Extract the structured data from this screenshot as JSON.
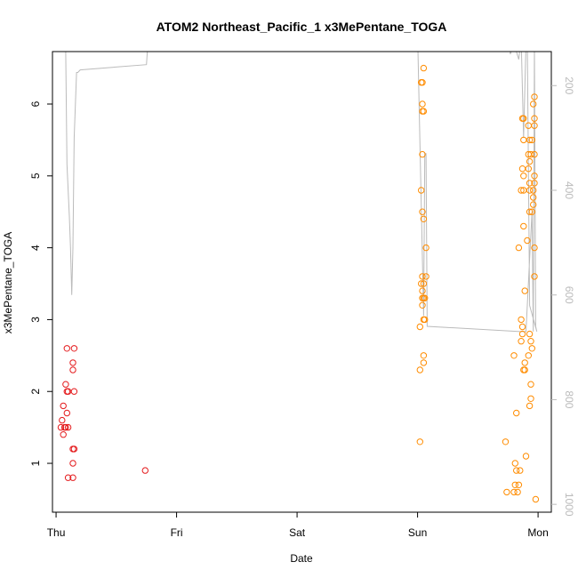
{
  "chart_data": {
    "type": "scatter",
    "title": "ATOM2 Northeast_Pacific_1 x3MePentane_TOGA",
    "xlabel": "Date",
    "ylabel": "x3MePentane_TOGA",
    "x_ticks": [
      "Thu",
      "Fri",
      "Sat",
      "Sun",
      "Mon"
    ],
    "x_tick_values": [
      0,
      1,
      2,
      3,
      4
    ],
    "xlim": [
      -0.03,
      4.11
    ],
    "ylim": [
      0.32,
      6.73
    ],
    "y_ticks": [
      1,
      2,
      3,
      4,
      5,
      6
    ],
    "y_right_ticks": [
      200,
      400,
      600,
      800,
      1000
    ],
    "y_right_lim": [
      1015,
      135
    ],
    "colors": {
      "series_a": "#e41a1c",
      "series_b": "#ff8c00",
      "pressure_line": "#bbbbbb"
    },
    "series": [
      {
        "color": "series_a",
        "points": [
          [
            0.08,
            1.5
          ],
          [
            0.05,
            1.6
          ],
          [
            0.06,
            1.8
          ],
          [
            0.06,
            1.4
          ],
          [
            0.04,
            1.5
          ],
          [
            0.07,
            1.5
          ],
          [
            0.09,
            2.0
          ],
          [
            0.1,
            2.0
          ],
          [
            0.09,
            1.7
          ],
          [
            0.1,
            1.5
          ],
          [
            0.08,
            2.1
          ],
          [
            0.09,
            2.6
          ],
          [
            0.15,
            2.6
          ],
          [
            0.14,
            2.4
          ],
          [
            0.14,
            2.3
          ],
          [
            0.15,
            2.0
          ],
          [
            0.14,
            1.2
          ],
          [
            0.15,
            1.2
          ],
          [
            0.14,
            1.0
          ],
          [
            0.1,
            0.8
          ],
          [
            0.14,
            0.8
          ],
          [
            0.74,
            0.9
          ]
        ]
      },
      {
        "color": "series_b",
        "points": [
          [
            3.03,
            6.3
          ],
          [
            3.05,
            6.5
          ],
          [
            3.04,
            6.3
          ],
          [
            3.04,
            6.0
          ],
          [
            3.04,
            5.9
          ],
          [
            3.05,
            5.9
          ],
          [
            3.04,
            5.3
          ],
          [
            3.03,
            4.8
          ],
          [
            3.04,
            4.5
          ],
          [
            3.05,
            4.4
          ],
          [
            3.07,
            4.0
          ],
          [
            3.04,
            3.6
          ],
          [
            3.07,
            3.6
          ],
          [
            3.05,
            3.5
          ],
          [
            3.03,
            3.5
          ],
          [
            3.04,
            3.4
          ],
          [
            3.05,
            3.3
          ],
          [
            3.04,
            3.3
          ],
          [
            3.06,
            3.3
          ],
          [
            3.04,
            3.2
          ],
          [
            3.05,
            3.0
          ],
          [
            3.06,
            3.0
          ],
          [
            3.02,
            2.9
          ],
          [
            3.05,
            2.5
          ],
          [
            3.05,
            2.4
          ],
          [
            3.02,
            2.3
          ],
          [
            3.02,
            1.3
          ],
          [
            3.73,
            1.3
          ],
          [
            3.74,
            0.6
          ],
          [
            3.8,
            0.6
          ],
          [
            3.83,
            0.6
          ],
          [
            3.81,
            0.7
          ],
          [
            3.84,
            0.7
          ],
          [
            3.82,
            0.9
          ],
          [
            3.85,
            0.9
          ],
          [
            3.81,
            1.0
          ],
          [
            3.9,
            1.1
          ],
          [
            3.82,
            1.7
          ],
          [
            3.98,
            0.5
          ],
          [
            3.93,
            1.8
          ],
          [
            3.94,
            1.9
          ],
          [
            3.94,
            2.1
          ],
          [
            3.88,
            2.3
          ],
          [
            3.89,
            2.3
          ],
          [
            3.89,
            2.4
          ],
          [
            3.92,
            2.5
          ],
          [
            3.8,
            2.5
          ],
          [
            3.95,
            2.6
          ],
          [
            3.86,
            2.7
          ],
          [
            3.94,
            2.7
          ],
          [
            3.87,
            2.8
          ],
          [
            3.93,
            2.8
          ],
          [
            3.87,
            2.9
          ],
          [
            3.86,
            3.0
          ],
          [
            3.89,
            3.4
          ],
          [
            3.97,
            3.6
          ],
          [
            3.84,
            4.0
          ],
          [
            3.91,
            4.1
          ],
          [
            3.97,
            4.0
          ],
          [
            3.88,
            4.3
          ],
          [
            3.95,
            4.5
          ],
          [
            3.93,
            4.5
          ],
          [
            3.96,
            4.6
          ],
          [
            3.96,
            4.7
          ],
          [
            3.88,
            4.8
          ],
          [
            3.86,
            4.8
          ],
          [
            3.93,
            4.8
          ],
          [
            3.96,
            4.8
          ],
          [
            3.93,
            4.9
          ],
          [
            3.97,
            4.9
          ],
          [
            3.88,
            5.0
          ],
          [
            3.97,
            5.0
          ],
          [
            3.87,
            5.1
          ],
          [
            3.92,
            5.1
          ],
          [
            3.93,
            5.2
          ],
          [
            3.92,
            5.3
          ],
          [
            3.94,
            5.3
          ],
          [
            3.97,
            5.3
          ],
          [
            3.93,
            5.5
          ],
          [
            3.95,
            5.5
          ],
          [
            3.88,
            5.5
          ],
          [
            3.97,
            5.7
          ],
          [
            3.92,
            5.7
          ],
          [
            3.97,
            5.8
          ],
          [
            3.88,
            5.8
          ],
          [
            3.87,
            5.8
          ],
          [
            3.96,
            6.0
          ],
          [
            3.97,
            6.1
          ]
        ]
      }
    ],
    "pressure_path": [
      [
        0.08,
        135
      ],
      [
        0.09,
        350
      ],
      [
        0.11,
        450
      ],
      [
        0.12,
        510
      ],
      [
        0.13,
        600
      ],
      [
        0.14,
        510
      ],
      [
        0.15,
        300
      ],
      [
        0.16,
        240
      ],
      [
        0.17,
        175
      ],
      [
        0.18,
        175
      ],
      [
        0.2,
        170
      ],
      [
        0.75,
        160
      ],
      [
        0.76,
        125
      ],
      [
        0.8,
        110
      ],
      [
        1.3,
        110
      ],
      [
        3.0,
        100
      ],
      [
        3.05,
        640
      ],
      [
        3.06,
        330
      ],
      [
        3.07,
        330
      ],
      [
        3.08,
        660
      ],
      [
        3.85,
        670
      ],
      [
        3.9,
        670
      ],
      [
        3.95,
        440
      ],
      [
        3.96,
        670
      ],
      [
        3.97,
        120
      ],
      [
        3.98,
        660
      ],
      [
        3.99,
        670
      ],
      [
        3.93,
        620
      ],
      [
        3.91,
        100
      ],
      [
        3.9,
        120
      ],
      [
        3.88,
        300
      ],
      [
        3.86,
        110
      ],
      [
        3.84,
        150
      ],
      [
        3.8,
        120
      ],
      [
        3.77,
        140
      ],
      [
        3.75,
        100
      ]
    ]
  }
}
